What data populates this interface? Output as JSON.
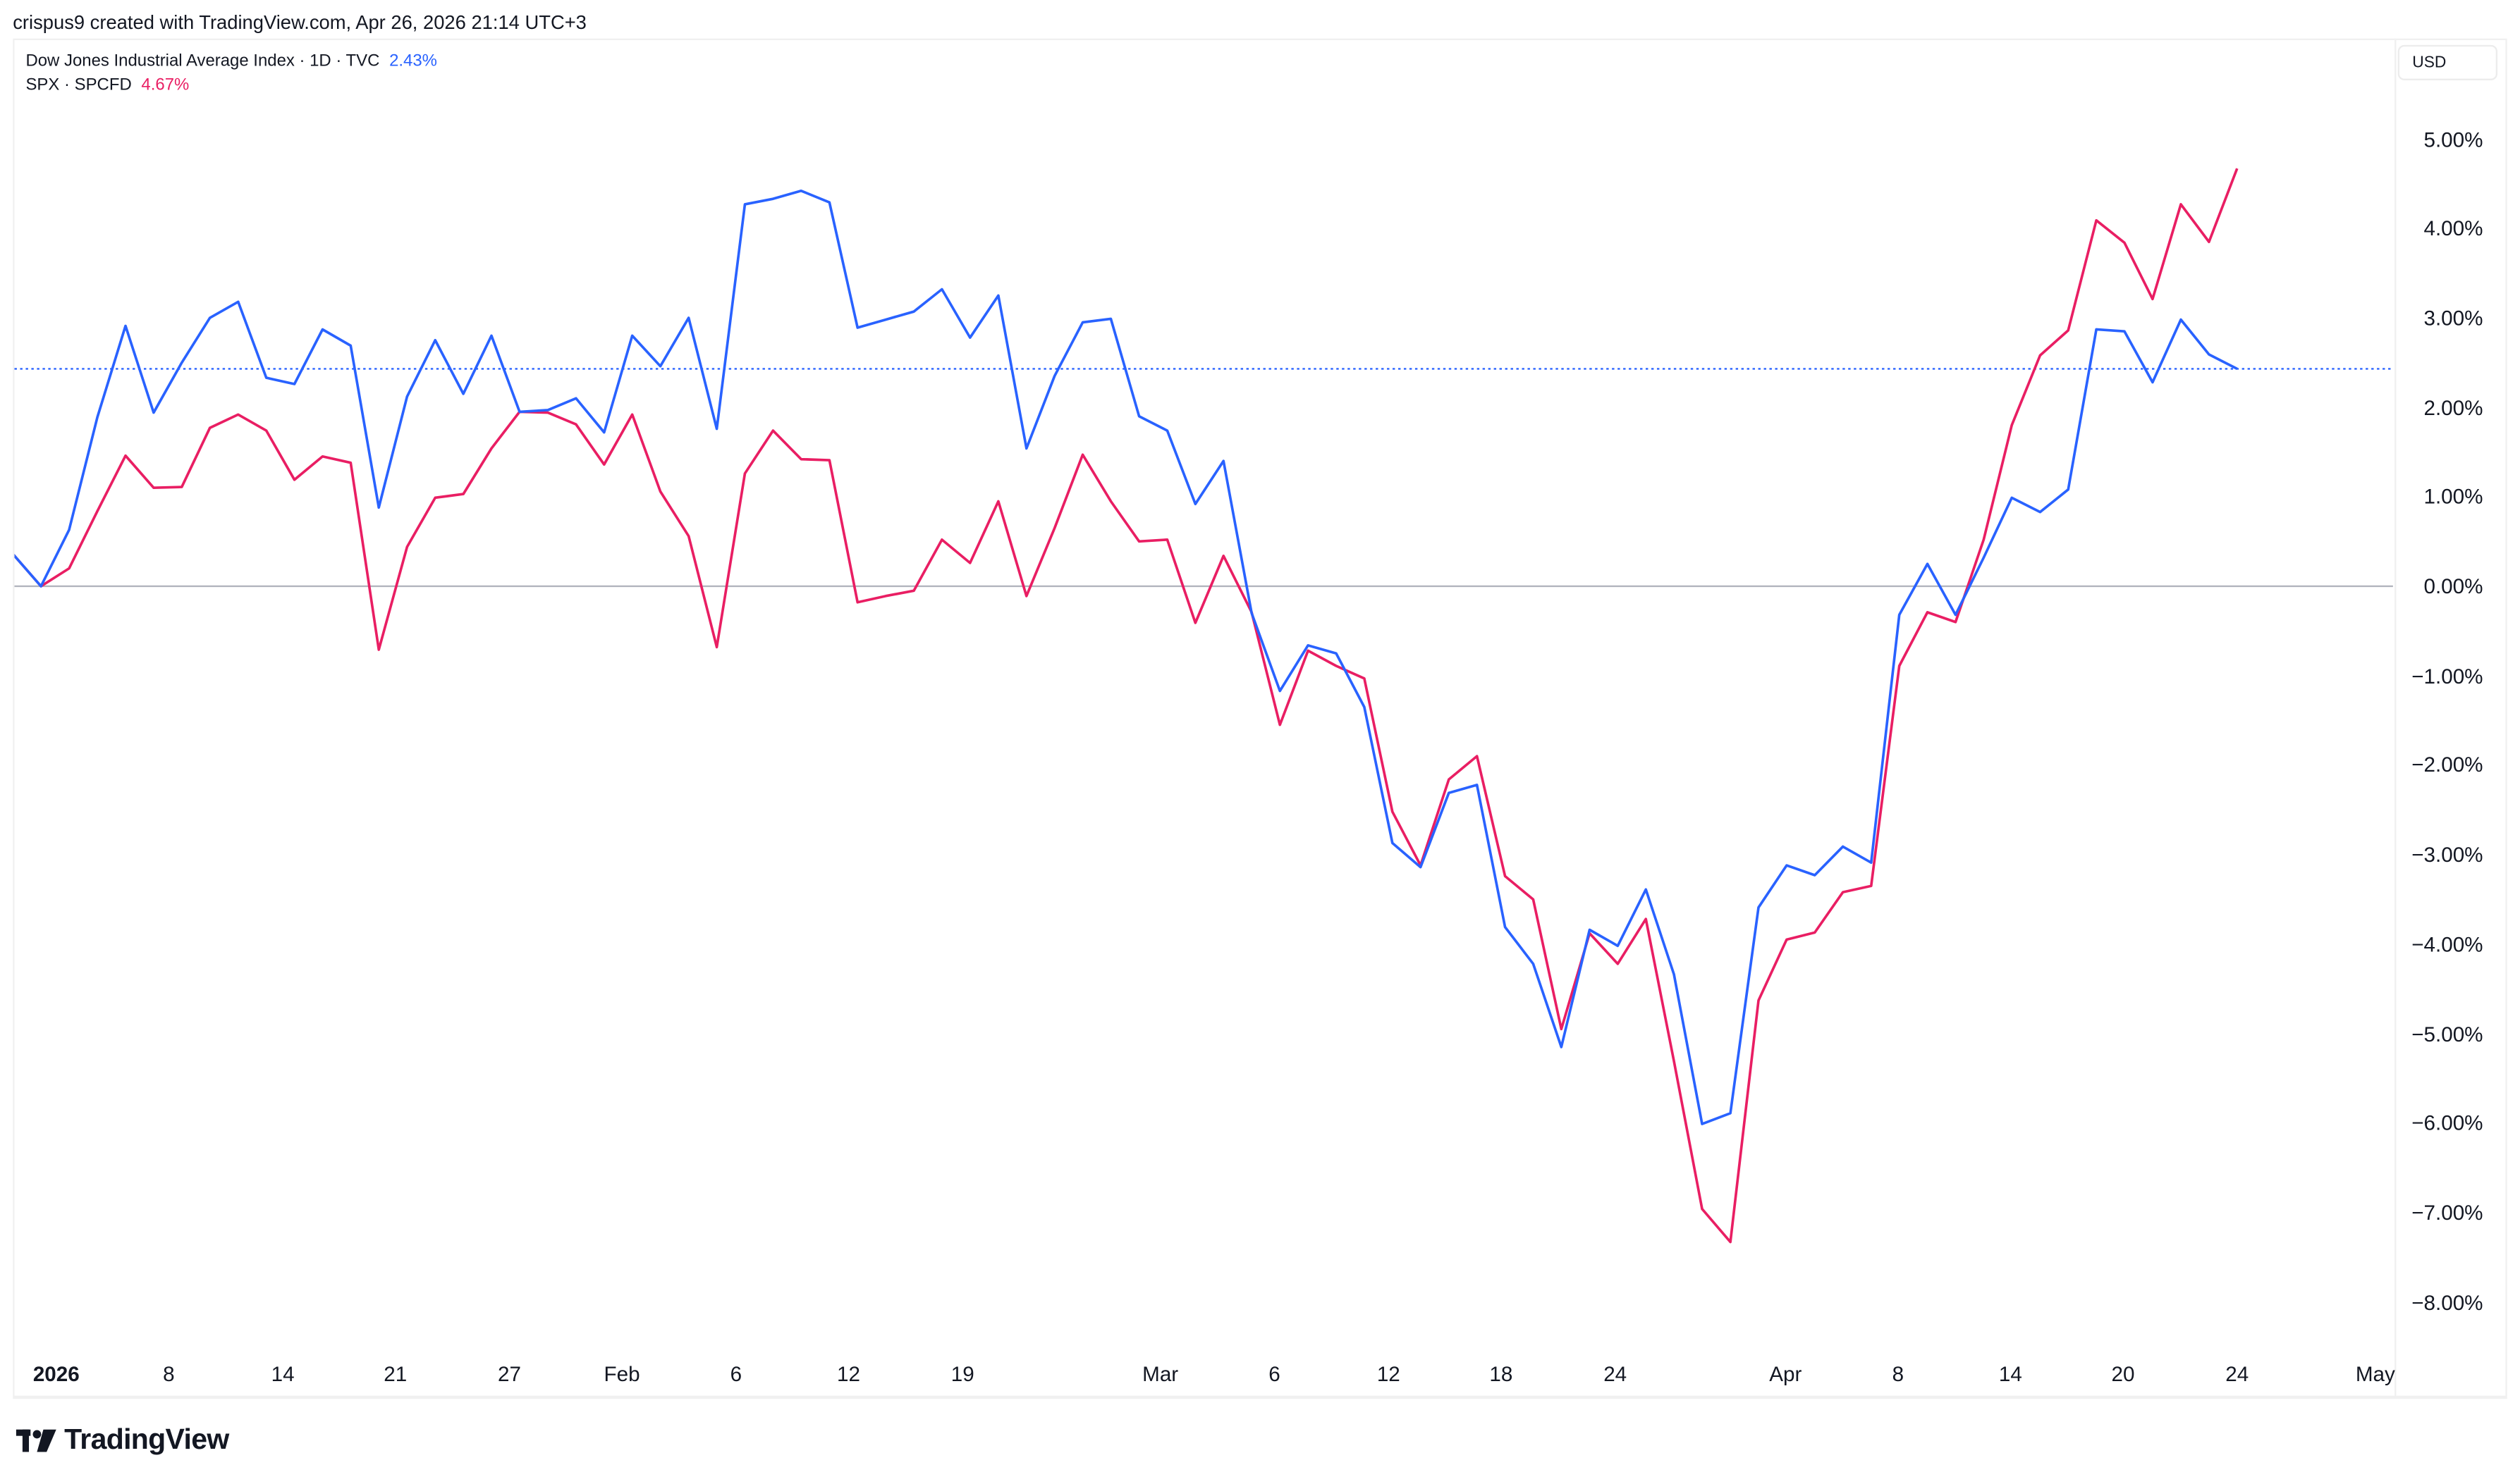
{
  "header": {
    "credit": "crispus9 created with TradingView.com, Apr 26, 2026 21:14 UTC+3"
  },
  "legend": {
    "series1_label": "Dow Jones Industrial Average Index · 1D · TVC",
    "series1_value": "2.43%",
    "series2_label": "SPX · SPCFD",
    "series2_value": "4.67%"
  },
  "yaxis": {
    "currency_button": "USD",
    "ticks": [
      "5.00%",
      "4.00%",
      "3.00%",
      "2.00%",
      "1.00%",
      "0.00%",
      "−1.00%",
      "−2.00%",
      "−3.00%",
      "−4.00%",
      "−5.00%",
      "−6.00%",
      "−7.00%",
      "−8.00%"
    ]
  },
  "xaxis": {
    "ticks": [
      "2026",
      "8",
      "14",
      "21",
      "27",
      "Feb",
      "6",
      "12",
      "19",
      "Mar",
      "6",
      "12",
      "18",
      "24",
      "Apr",
      "8",
      "14",
      "20",
      "24",
      "May"
    ]
  },
  "footer": {
    "brand": "TradingView"
  },
  "colors": {
    "dji": "#2962ff",
    "spx": "#e91e63",
    "zero_line": "#b2b5be"
  },
  "chart_data": {
    "type": "line",
    "title": "Dow Jones Industrial Average Index vs SPX (percent change)",
    "xlabel": "",
    "ylabel": "% change",
    "ylim": [
      -8.5,
      5.5
    ],
    "grid": false,
    "legend_position": "top-left",
    "x_ticks": [
      "2026",
      "8",
      "14",
      "21",
      "27",
      "Feb",
      "6",
      "12",
      "19",
      "Mar",
      "6",
      "12",
      "18",
      "24",
      "Apr",
      "8",
      "14",
      "20",
      "24",
      "May"
    ],
    "series": [
      {
        "name": "Dow Jones Industrial Average Index · 1D · TVC",
        "last_value": 2.43,
        "values": [
          0.36,
          0.0,
          0.63,
          1.89,
          2.91,
          1.94,
          2.5,
          3.0,
          3.18,
          2.33,
          2.26,
          2.87,
          2.69,
          0.88,
          2.12,
          2.75,
          2.15,
          2.8,
          1.95,
          1.97,
          2.1,
          1.72,
          2.8,
          2.46,
          3.0,
          1.76,
          4.27,
          4.33,
          4.42,
          4.29,
          2.89,
          2.98,
          3.07,
          3.32,
          2.78,
          3.25,
          1.54,
          2.35,
          2.95,
          2.99,
          1.9,
          1.74,
          0.92,
          1.4,
          -0.3,
          -1.17,
          -0.66,
          -0.75,
          -1.35,
          -2.87,
          -3.14,
          -2.31,
          -2.22,
          -3.81,
          -4.22,
          -5.15,
          -3.84,
          -4.02,
          -3.39,
          -4.34,
          -6.01,
          -5.89,
          -3.59,
          -3.12,
          -3.23,
          -2.91,
          -3.09,
          -0.32,
          0.25,
          -0.32,
          0.32,
          0.99,
          0.83,
          1.08,
          2.87,
          2.85,
          2.28,
          2.98,
          2.59,
          2.43
        ]
      },
      {
        "name": "SPX · SPCFD",
        "last_value": 4.67,
        "values": [
          0.36,
          0.0,
          0.2,
          0.84,
          1.46,
          1.1,
          1.11,
          1.77,
          1.92,
          1.74,
          1.19,
          1.45,
          1.38,
          -0.71,
          0.44,
          0.99,
          1.03,
          1.54,
          1.95,
          1.94,
          1.81,
          1.36,
          1.92,
          1.06,
          0.56,
          -0.68,
          1.26,
          1.74,
          1.42,
          1.41,
          -0.18,
          -0.11,
          -0.05,
          0.52,
          0.26,
          0.95,
          -0.11,
          0.65,
          1.47,
          0.95,
          0.5,
          0.52,
          -0.41,
          0.34,
          -0.29,
          -1.55,
          -0.72,
          -0.89,
          -1.03,
          -2.52,
          -3.12,
          -2.16,
          -1.9,
          -3.24,
          -3.5,
          -4.95,
          -3.88,
          -4.22,
          -3.72,
          -5.31,
          -6.96,
          -7.33,
          -4.63,
          -3.95,
          -3.87,
          -3.42,
          -3.35,
          -0.89,
          -0.29,
          -0.4,
          0.52,
          1.8,
          2.58,
          2.86,
          4.09,
          3.84,
          3.21,
          4.27,
          3.85,
          4.67
        ]
      }
    ]
  }
}
